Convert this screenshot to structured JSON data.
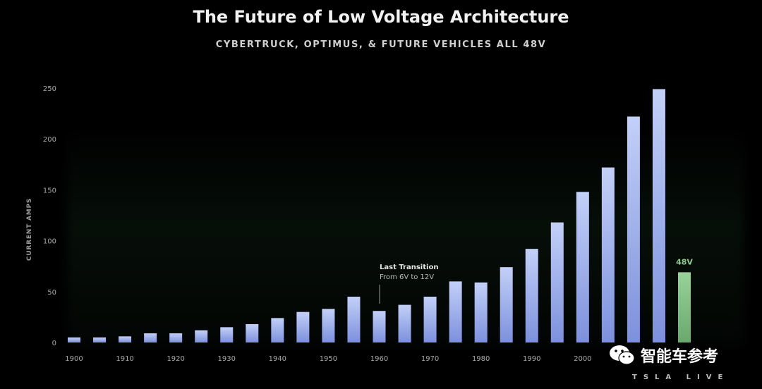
{
  "header": {
    "title": "The Future of Low Voltage Architecture",
    "subtitle": "CYBERTRUCK, OPTIMUS, & FUTURE VEHICLES ALL 48V"
  },
  "annotation": {
    "title": "Last Transition",
    "text": "From 6V to 12V"
  },
  "watermark": {
    "text": "智能车参考",
    "icon": "wechat-icon"
  },
  "brand": "TSLA LIVE",
  "colors": {
    "background": "#000000",
    "bar_top": "#b9c8f5",
    "bar_bottom": "#6f84d6",
    "highlight": "#8fc98f",
    "highlight_label": "#8fc98f"
  },
  "chart_data": {
    "type": "bar",
    "ylabel": "CURRENT AMPS",
    "ylim": [
      0,
      250
    ],
    "yticks": [
      0,
      50,
      100,
      150,
      200,
      250
    ],
    "xticks": [
      "1900",
      "1910",
      "1920",
      "1930",
      "1940",
      "1950",
      "1960",
      "1970",
      "1980",
      "1990",
      "2000"
    ],
    "grid": false,
    "categories": [
      "1900",
      "1905",
      "1910",
      "1915",
      "1920",
      "1925",
      "1930",
      "1935",
      "1940",
      "1945",
      "1950",
      "1955",
      "1960",
      "1965",
      "1970",
      "1975",
      "1980",
      "1985",
      "1990",
      "1995",
      "2000",
      "2005",
      "2010",
      "2015",
      "2020"
    ],
    "series": [
      {
        "values": [
          5,
          5,
          6,
          9,
          9,
          12,
          15,
          18,
          24,
          30,
          33,
          45,
          31,
          37,
          45,
          60,
          59,
          74,
          92,
          118,
          148,
          172,
          222,
          249,
          69
        ]
      }
    ],
    "highlight": {
      "category": "2020",
      "label": "48V"
    }
  }
}
